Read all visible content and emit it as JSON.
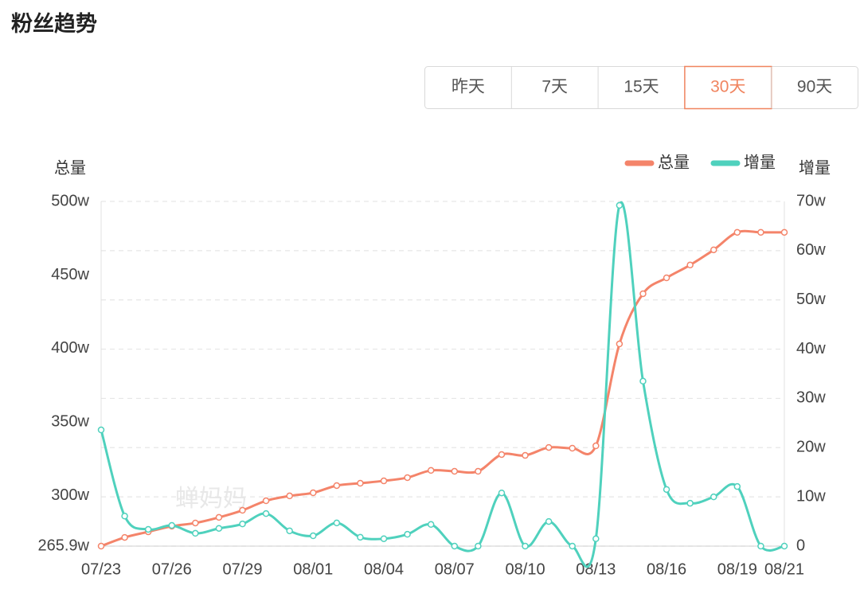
{
  "header": {
    "title": "粉丝趋势"
  },
  "tabs": [
    "昨天",
    "7天",
    "15天",
    "30天",
    "90天"
  ],
  "selected_tab": 3,
  "watermark": "蝉妈妈",
  "chart_data": {
    "type": "line",
    "y_label": "总量",
    "y2_label": "增量",
    "categories": [
      "07/23",
      null,
      null,
      "07/26",
      null,
      null,
      "07/29",
      null,
      null,
      "08/01",
      null,
      null,
      "08/04",
      null,
      null,
      "08/07",
      null,
      null,
      "08/10",
      null,
      null,
      "08/13",
      null,
      null,
      "08/16",
      null,
      null,
      "08/19",
      null,
      "08/21"
    ],
    "series": [
      {
        "name": "总量",
        "color": "#f4846a",
        "axis": "y",
        "values": [
          265.9,
          271.8,
          275.6,
          279.4,
          281.6,
          285.4,
          290.2,
          296.7,
          300.0,
          302.1,
          307.0,
          308.6,
          310.2,
          312.4,
          317.3,
          316.7,
          316.7,
          328.1,
          327.5,
          332.9,
          332.4,
          334.0,
          403.2,
          437.3,
          448.1,
          456.8,
          467.1,
          479.0,
          479.0,
          479.0
        ]
      },
      {
        "name": "增量",
        "color": "#4fd1bd",
        "axis": "y2",
        "values": [
          23.6,
          6.1,
          3.4,
          4.2,
          2.6,
          3.6,
          4.5,
          6.6,
          3.1,
          2.1,
          4.7,
          1.8,
          1.5,
          2.4,
          4.4,
          0,
          0,
          10.8,
          0,
          5.0,
          0,
          1.5,
          69.2,
          33.5,
          11.5,
          8.7,
          10,
          12.1,
          0,
          0
        ]
      }
    ],
    "ylim": [
      265.9,
      500
    ],
    "yticks": [
      {
        "value": 265.9,
        "label": "265.9w"
      },
      {
        "value": 300,
        "label": "300w"
      },
      {
        "value": 350,
        "label": "350w"
      },
      {
        "value": 400,
        "label": "400w"
      },
      {
        "value": 450,
        "label": "450w"
      },
      {
        "value": 500,
        "label": "500w"
      }
    ],
    "y2lim": [
      0,
      70
    ],
    "y2ticks": [
      0,
      {
        "value": 10,
        "label": "10w"
      },
      {
        "value": 20,
        "label": "20w"
      },
      {
        "value": 30,
        "label": "30w"
      },
      {
        "value": 40,
        "label": "40w"
      },
      {
        "value": 50,
        "label": "50w"
      },
      {
        "value": 60,
        "label": "60w"
      },
      {
        "value": 70,
        "label": "70w"
      }
    ],
    "grid": true,
    "legend": "top-right"
  }
}
